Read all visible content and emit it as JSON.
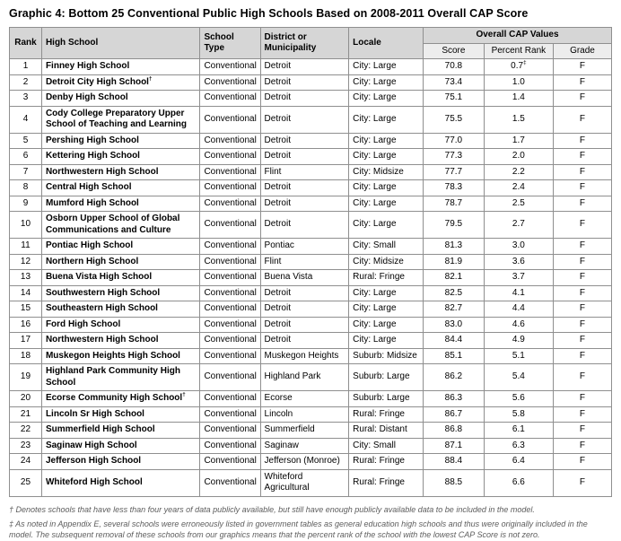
{
  "title": "Graphic 4: Bottom 25 Conventional Public High Schools Based on 2008-2011 Overall CAP Score",
  "table": {
    "headers": [
      "Rank",
      "High School",
      "School Type",
      "District or Municipality",
      "Locale"
    ],
    "group_header": "Overall CAP Values",
    "sub_columns": [
      "Score",
      "Percent Rank",
      "Grade"
    ],
    "rows": [
      {
        "rank": "1",
        "school": "Finney High School",
        "type": "Conventional",
        "district": "Detroit",
        "locale": "City: Large",
        "score": "70.8",
        "percent_rank": "0.7‡",
        "grade": "F"
      },
      {
        "rank": "2",
        "school": "Detroit City High School†",
        "type": "Conventional",
        "district": "Detroit",
        "locale": "City: Large",
        "score": "73.4",
        "percent_rank": "1.0",
        "grade": "F"
      },
      {
        "rank": "3",
        "school": "Denby High School",
        "type": "Conventional",
        "district": "Detroit",
        "locale": "City: Large",
        "score": "75.1",
        "percent_rank": "1.4",
        "grade": "F"
      },
      {
        "rank": "4",
        "school": "Cody College Preparatory Upper School of Teaching and Learning",
        "type": "Conventional",
        "district": "Detroit",
        "locale": "City: Large",
        "score": "75.5",
        "percent_rank": "1.5",
        "grade": "F"
      },
      {
        "rank": "5",
        "school": "Pershing High School",
        "type": "Conventional",
        "district": "Detroit",
        "locale": "City: Large",
        "score": "77.0",
        "percent_rank": "1.7",
        "grade": "F"
      },
      {
        "rank": "6",
        "school": "Kettering High School",
        "type": "Conventional",
        "district": "Detroit",
        "locale": "City: Large",
        "score": "77.3",
        "percent_rank": "2.0",
        "grade": "F"
      },
      {
        "rank": "7",
        "school": "Northwestern High School",
        "type": "Conventional",
        "district": "Flint",
        "locale": "City: Midsize",
        "score": "77.7",
        "percent_rank": "2.2",
        "grade": "F"
      },
      {
        "rank": "8",
        "school": "Central High School",
        "type": "Conventional",
        "district": "Detroit",
        "locale": "City: Large",
        "score": "78.3",
        "percent_rank": "2.4",
        "grade": "F"
      },
      {
        "rank": "9",
        "school": "Mumford High School",
        "type": "Conventional",
        "district": "Detroit",
        "locale": "City: Large",
        "score": "78.7",
        "percent_rank": "2.5",
        "grade": "F"
      },
      {
        "rank": "10",
        "school": "Osborn Upper School of Global Communications and Culture",
        "type": "Conventional",
        "district": "Detroit",
        "locale": "City: Large",
        "score": "79.5",
        "percent_rank": "2.7",
        "grade": "F"
      },
      {
        "rank": "11",
        "school": "Pontiac High School",
        "type": "Conventional",
        "district": "Pontiac",
        "locale": "City: Small",
        "score": "81.3",
        "percent_rank": "3.0",
        "grade": "F"
      },
      {
        "rank": "12",
        "school": "Northern High School",
        "type": "Conventional",
        "district": "Flint",
        "locale": "City: Midsize",
        "score": "81.9",
        "percent_rank": "3.6",
        "grade": "F"
      },
      {
        "rank": "13",
        "school": "Buena Vista High School",
        "type": "Conventional",
        "district": "Buena Vista",
        "locale": "Rural: Fringe",
        "score": "82.1",
        "percent_rank": "3.7",
        "grade": "F"
      },
      {
        "rank": "14",
        "school": "Southwestern High School",
        "type": "Conventional",
        "district": "Detroit",
        "locale": "City: Large",
        "score": "82.5",
        "percent_rank": "4.1",
        "grade": "F"
      },
      {
        "rank": "15",
        "school": "Southeastern High School",
        "type": "Conventional",
        "district": "Detroit",
        "locale": "City: Large",
        "score": "82.7",
        "percent_rank": "4.4",
        "grade": "F"
      },
      {
        "rank": "16",
        "school": "Ford High School",
        "type": "Conventional",
        "district": "Detroit",
        "locale": "City: Large",
        "score": "83.0",
        "percent_rank": "4.6",
        "grade": "F"
      },
      {
        "rank": "17",
        "school": "Northwestern High School",
        "type": "Conventional",
        "district": "Detroit",
        "locale": "City: Large",
        "score": "84.4",
        "percent_rank": "4.9",
        "grade": "F"
      },
      {
        "rank": "18",
        "school": "Muskegon Heights High School",
        "type": "Conventional",
        "district": "Muskegon Heights",
        "locale": "Suburb: Midsize",
        "score": "85.1",
        "percent_rank": "5.1",
        "grade": "F"
      },
      {
        "rank": "19",
        "school": "Highland Park Community High School",
        "type": "Conventional",
        "district": "Highland Park",
        "locale": "Suburb: Large",
        "score": "86.2",
        "percent_rank": "5.4",
        "grade": "F"
      },
      {
        "rank": "20",
        "school": "Ecorse Community High School†",
        "type": "Conventional",
        "district": "Ecorse",
        "locale": "Suburb: Large",
        "score": "86.3",
        "percent_rank": "5.6",
        "grade": "F"
      },
      {
        "rank": "21",
        "school": "Lincoln Sr High School",
        "type": "Conventional",
        "district": "Lincoln",
        "locale": "Rural: Fringe",
        "score": "86.7",
        "percent_rank": "5.8",
        "grade": "F"
      },
      {
        "rank": "22",
        "school": "Summerfield High School",
        "type": "Conventional",
        "district": "Summerfield",
        "locale": "Rural: Distant",
        "score": "86.8",
        "percent_rank": "6.1",
        "grade": "F"
      },
      {
        "rank": "23",
        "school": "Saginaw High School",
        "type": "Conventional",
        "district": "Saginaw",
        "locale": "City: Small",
        "score": "87.1",
        "percent_rank": "6.3",
        "grade": "F"
      },
      {
        "rank": "24",
        "school": "Jefferson High School",
        "type": "Conventional",
        "district": "Jefferson (Monroe)",
        "locale": "Rural: Fringe",
        "score": "88.4",
        "percent_rank": "6.4",
        "grade": "F"
      },
      {
        "rank": "25",
        "school": "Whiteford High School",
        "type": "Conventional",
        "district": "Whiteford Agricultural",
        "locale": "Rural: Fringe",
        "score": "88.5",
        "percent_rank": "6.6",
        "grade": "F"
      }
    ]
  },
  "footnotes": [
    "† Denotes schools that have less than four years of data publicly available, but still have enough publicly available data to be included in the model.",
    "‡ As noted in Appendix E, several schools were erroneously listed in government tables as general education high schools and thus were originally included in the model. The subsequent removal of these schools from our graphics means that the percent rank of the school with the lowest CAP Score is not zero."
  ],
  "colors": {
    "header_bg": "#d6d6d6",
    "subheader_bg": "#ededed",
    "border": "#8f8f8f",
    "footnote_text": "#5d5d5d"
  }
}
